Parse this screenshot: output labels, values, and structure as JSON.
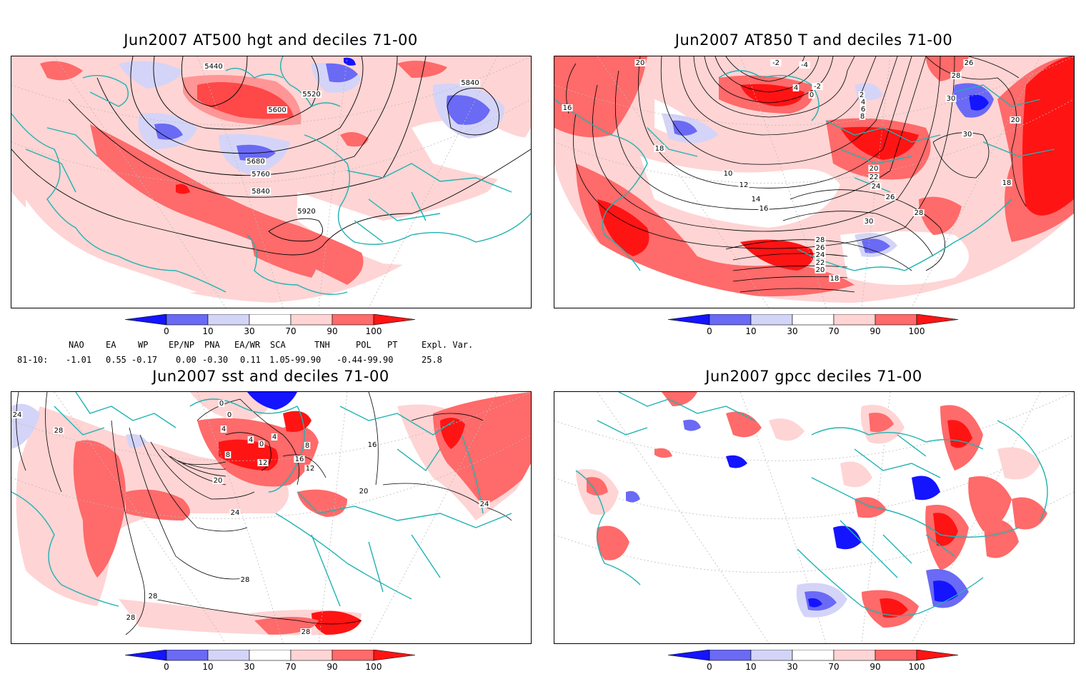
{
  "panels": [
    {
      "title": "Jun2007 AT500 hgt and deciles 71-00",
      "contour_labels": [
        "5440",
        "5520",
        "5600",
        "5680",
        "5760",
        "5840",
        "5840",
        "5920"
      ]
    },
    {
      "title": "Jun2007 AT850 T and deciles 71-00",
      "contour_labels": [
        "20",
        "16",
        "18",
        "-2",
        "-4",
        "4",
        "-2",
        "0",
        "2",
        "4",
        "6",
        "8",
        "26",
        "28",
        "30",
        "30",
        "20",
        "20",
        "22",
        "24",
        "26",
        "28",
        "18",
        "10",
        "12",
        "14",
        "16",
        "30",
        "28",
        "26",
        "24",
        "22",
        "20",
        "18"
      ]
    },
    {
      "title": "Jun2007 sst and deciles 71-00",
      "contour_labels": [
        "24",
        "28",
        "0",
        "0",
        "4",
        "4",
        "0",
        "4",
        "8",
        "12",
        "16",
        "20",
        "24",
        "28",
        "28",
        "28",
        "8",
        "12",
        "16",
        "20",
        "24",
        "28"
      ]
    },
    {
      "title": "Jun2007 gpcc deciles 71-00",
      "contour_labels": []
    }
  ],
  "colorbar": {
    "tick_labels": [
      "0",
      "10",
      "30",
      "70",
      "90",
      "100"
    ],
    "colors": [
      "#1414ff",
      "#6a6af5",
      "#d4d4f8",
      "#ffffff",
      "#ffd4d4",
      "#ff6a6a",
      "#ff1414"
    ]
  },
  "indices": {
    "headers": [
      "NAO",
      "EA",
      "WP",
      "EP/NP",
      "PNA",
      "EA/WR",
      "SCA",
      "TNH",
      "POL",
      "PT",
      "Expl. Var."
    ],
    "row_label": "81-10:",
    "values": [
      "-1.01",
      "0.55",
      "-0.17",
      "0.00",
      "-0.30",
      "0.11",
      "1.05-99.90",
      "-0.44-99.90",
      "25.8"
    ]
  },
  "colors": {
    "coast": "#20b2b2",
    "contour": "#000000",
    "grid": "#bbbbbb",
    "pale_red": "#ffd4d4",
    "mid_red": "#ff6a6a",
    "deep_red": "#ff1414",
    "pale_blue": "#d4d4f8",
    "mid_blue": "#6a6af5",
    "deep_blue": "#1414ff"
  }
}
